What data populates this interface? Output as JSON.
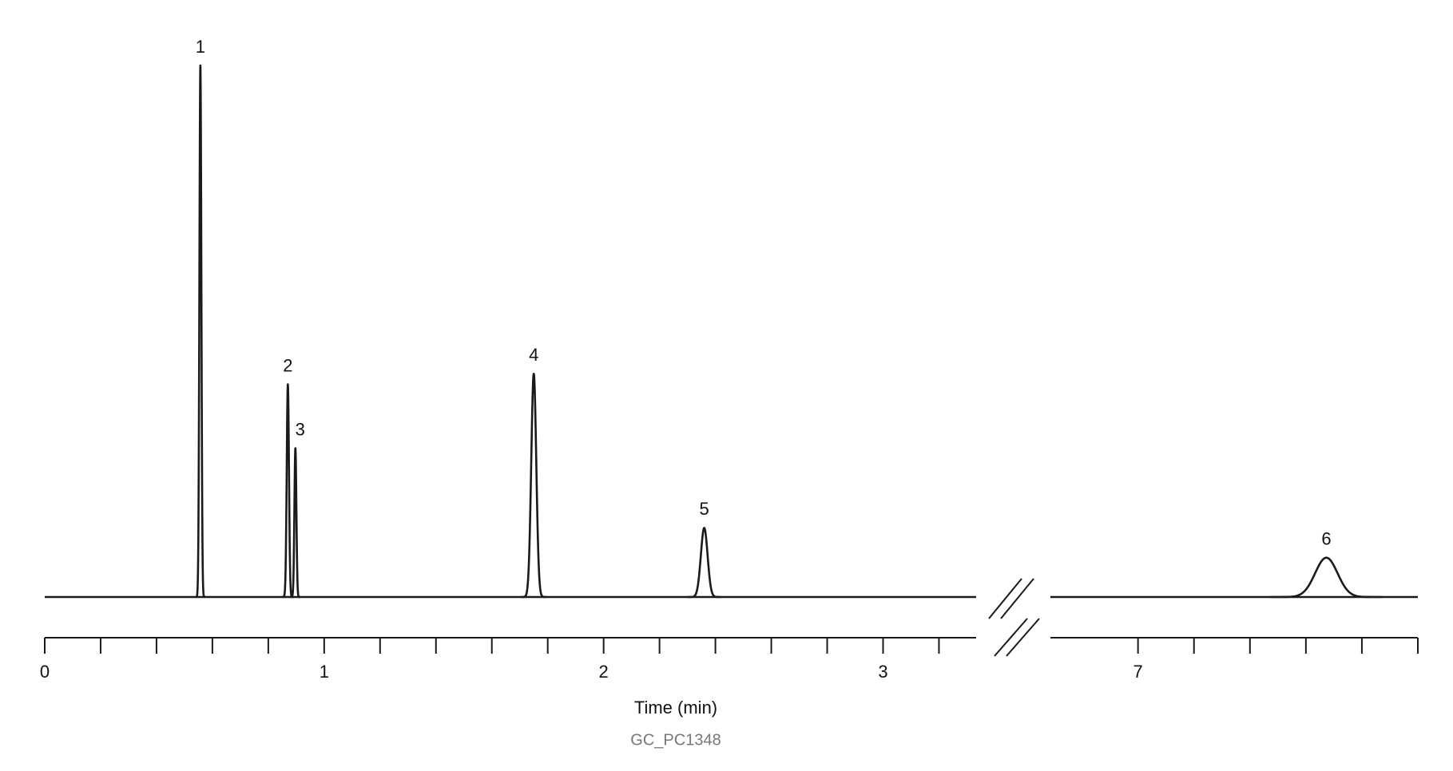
{
  "chart_data": {
    "type": "chromatogram",
    "xlabel": "Time (min)",
    "footnote": "GC_PC1348",
    "color": "#1a1a1a",
    "ylim": [
      0,
      100
    ],
    "segments": [
      {
        "xlim": [
          0,
          3.333
        ],
        "xticks": [
          0,
          1,
          2,
          3
        ],
        "minor_xticks": [
          0.2,
          0.4,
          0.6,
          0.8,
          1.2,
          1.4,
          1.6,
          1.8,
          2.2,
          2.4,
          2.6,
          2.8,
          3.2
        ]
      },
      {
        "xlim": [
          6.687,
          8.0
        ],
        "xticks": [
          7
        ],
        "minor_xticks": [
          7.2,
          7.4,
          7.6,
          7.8,
          8.0
        ]
      }
    ],
    "peaks": {
      "labels": [
        "1",
        "2",
        "3",
        "4",
        "5",
        "6"
      ],
      "times": [
        0.557,
        0.87,
        0.897,
        1.75,
        2.36,
        7.673
      ],
      "heights": [
        100,
        40,
        28,
        42,
        13,
        7.4
      ],
      "widths": [
        0.0035,
        0.004,
        0.0035,
        0.009,
        0.012,
        0.04
      ]
    }
  }
}
